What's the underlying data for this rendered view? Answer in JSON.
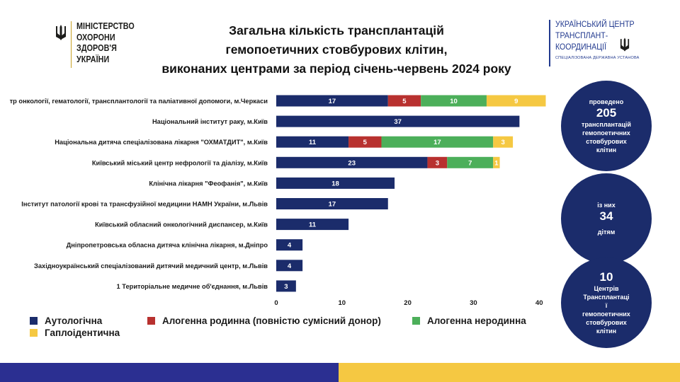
{
  "header": {
    "ministry_lines": [
      "МІНІСТЕРСТВО",
      "ОХОРОНИ",
      "ЗДОРОВ'Я",
      "УКРАЇНИ"
    ],
    "title_lines": [
      "Загальна кількість трансплантацій",
      "гемопоетичних стовбурових клітин,",
      "виконаних центрами за період січень-червень 2024 року"
    ],
    "center_lines": [
      "УКРАЇНСЬКИЙ ЦЕНТР",
      "ТРАНСПЛАНТ-",
      "КООРДИНАЦІЇ"
    ],
    "center_sub": "СПЕЦІАЛІЗОВАНА ДЕРЖАВНА УСТАНОВА"
  },
  "chart_data": {
    "type": "bar",
    "orientation": "horizontal",
    "stacked": true,
    "categories": [
      "тр онкології, гематології, трансплантології та паліативної допомоги, м.Черкаси",
      "Національний інститут раку, м.Київ",
      "Національна дитяча спеціалізована лікарня \"ОХМАТДИТ\", м.Київ",
      "Київський міський центр нефрології та діалізу, м.Київ",
      "Клінічна лікарня \"Феофанія\", м.Київ",
      "Інститут патології крові та трансфузійної медицини НАМН України, м.Львів",
      "Київський обласний онкологічний диспансер, м.Київ",
      "Дніпропетровська обласна дитяча клінічна лікарня, м.Дніпро",
      "Західноукраїнський спеціалізований дитячий медичний центр, м.Львів",
      "1 Територіальне медичне об'єднання, м.Львів"
    ],
    "series": [
      {
        "name": "Аутологічна",
        "color": "#1b2c6b",
        "values": [
          17,
          37,
          11,
          23,
          18,
          17,
          11,
          4,
          4,
          3
        ]
      },
      {
        "name": "Алогенна родинна (повністю сумісний донор)",
        "color": "#b8312f",
        "values": [
          5,
          0,
          5,
          3,
          0,
          0,
          0,
          0,
          0,
          0
        ]
      },
      {
        "name": "Алогенна неродинна",
        "color": "#4caf5a",
        "values": [
          10,
          0,
          17,
          7,
          0,
          0,
          0,
          0,
          0,
          0
        ]
      },
      {
        "name": "Гаплоідентична",
        "color": "#f5c842",
        "values": [
          9,
          0,
          3,
          1,
          0,
          0,
          0,
          0,
          0,
          0
        ]
      }
    ],
    "xlim": [
      0,
      40
    ],
    "xticks": [
      0,
      10,
      20,
      30,
      40
    ],
    "grid": false,
    "legend_position": "bottom"
  },
  "summary": {
    "c1": {
      "top": "проведено",
      "number": "205",
      "bottom_lines": [
        "трансплантацій",
        "гемопоетичних",
        "стовбурових",
        "клітин"
      ]
    },
    "c2": {
      "top": "із них",
      "number": "34",
      "bottom": "дітям"
    },
    "c3": {
      "number": "10",
      "lines": [
        "Центрів",
        "Трансплантаці",
        "ї",
        "гемопоетичних",
        "стовбурових",
        "клітин"
      ]
    }
  }
}
